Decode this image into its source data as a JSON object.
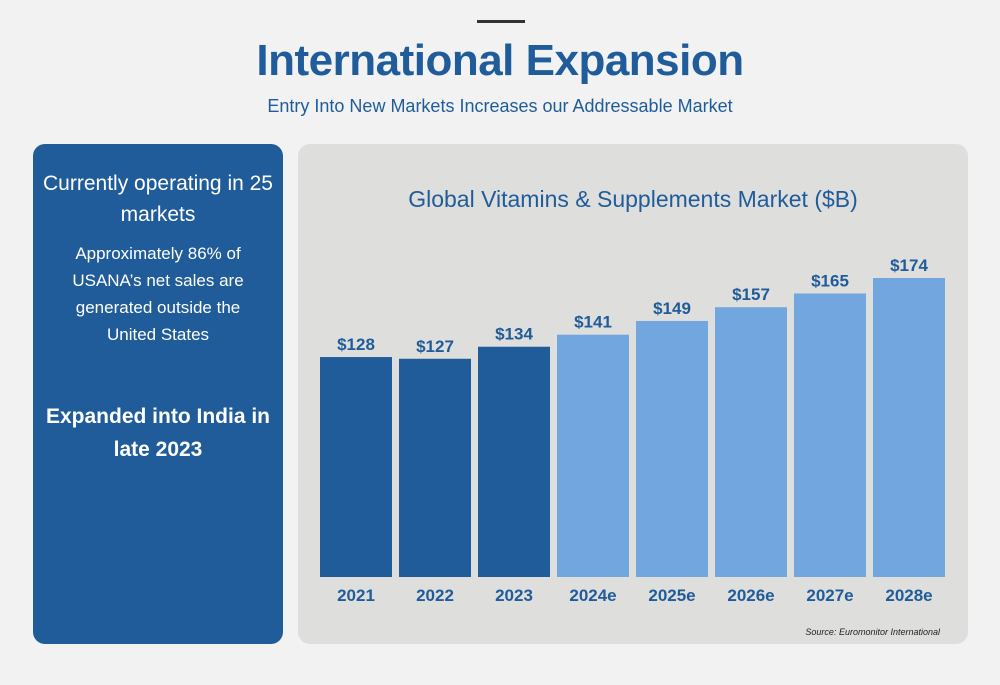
{
  "header": {
    "title": "International Expansion",
    "subtitle": "Entry Into New Markets Increases our Addressable Market"
  },
  "left_panel": {
    "headline": "Currently operating in 25 markets",
    "body": "Approximately 86% of USANA’s net sales are generated outside the United States",
    "footer": "Expanded into India in late 2023",
    "background_color": "#1f5c99"
  },
  "chart_data": {
    "type": "bar",
    "title": "Global Vitamins & Supplements Market ($B)",
    "categories": [
      "2021",
      "2022",
      "2023",
      "2024e",
      "2025e",
      "2026e",
      "2027e",
      "2028e"
    ],
    "values": [
      128,
      127,
      134,
      141,
      149,
      157,
      165,
      174
    ],
    "value_labels": [
      "$128",
      "$127",
      "$134",
      "$141",
      "$149",
      "$157",
      "$165",
      "$174"
    ],
    "ylim": [
      0,
      174
    ],
    "grid": false,
    "legend": "none",
    "colors": {
      "actual": "#1f5c99",
      "estimate": "#71a7de"
    },
    "estimate_flags": [
      false,
      false,
      false,
      true,
      true,
      true,
      true,
      true
    ],
    "source": "Source: Euromonitor International"
  }
}
